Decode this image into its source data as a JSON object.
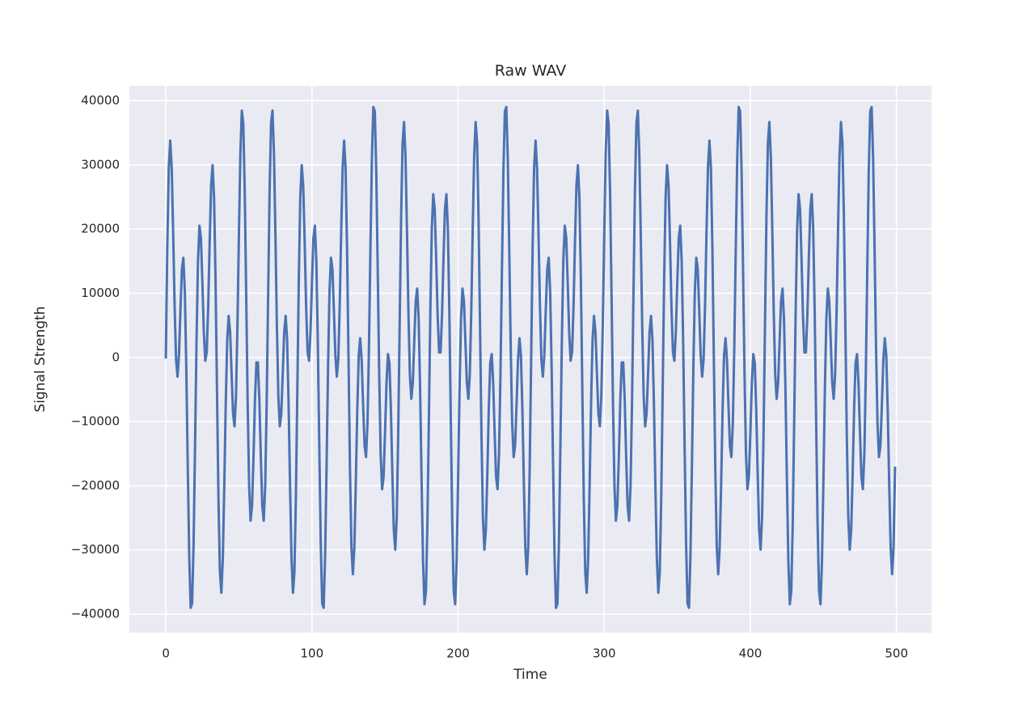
{
  "chart_data": {
    "type": "line",
    "title": "Raw WAV",
    "x_label": "Time",
    "y_label": "Signal Strength",
    "color": "#4c72b0",
    "grid": true,
    "xlim": [
      -24.95,
      523.95
    ],
    "xticks": [
      0,
      100,
      200,
      300,
      400,
      500
    ],
    "ylim": [
      -42893,
      42328
    ],
    "yticks": [
      {
        "value": -40000,
        "label": "−40000"
      },
      {
        "value": -30000,
        "label": "−30000"
      },
      {
        "value": -20000,
        "label": "−20000"
      },
      {
        "value": -10000,
        "label": "−10000"
      },
      0,
      10000,
      20000,
      30000,
      40000
    ],
    "x": [
      0,
      1,
      2,
      3,
      4,
      5,
      6,
      7,
      8,
      9,
      10,
      11,
      12,
      13,
      14,
      15,
      16,
      17,
      18,
      19,
      20,
      21,
      22,
      23,
      24,
      25,
      26,
      27,
      28,
      29,
      30,
      31,
      32,
      33,
      34,
      35,
      36,
      37,
      38,
      39,
      40,
      41,
      42,
      43,
      44,
      45,
      46,
      47,
      48,
      49,
      50,
      51,
      52,
      53,
      54,
      55,
      56,
      57,
      58,
      59,
      60,
      61,
      62,
      63,
      64,
      65,
      66,
      67,
      68,
      69,
      70,
      71,
      72,
      73,
      74,
      75,
      76,
      77,
      78,
      79,
      80,
      81,
      82,
      83,
      84,
      85,
      86,
      87,
      88,
      89,
      90,
      91,
      92,
      93,
      94,
      95,
      96,
      97,
      98,
      99,
      100,
      101,
      102,
      103,
      104,
      105,
      106,
      107,
      108,
      109,
      110,
      111,
      112,
      113,
      114,
      115,
      116,
      117,
      118,
      119,
      120,
      121,
      122,
      123,
      124,
      125,
      126,
      127,
      128,
      129,
      130,
      131,
      132,
      133,
      134,
      135,
      136,
      137,
      138,
      139,
      140,
      141,
      142,
      143,
      144,
      145,
      146,
      147,
      148,
      149,
      150,
      151,
      152,
      153,
      154,
      155,
      156,
      157,
      158,
      159,
      160,
      161,
      162,
      163,
      164,
      165,
      166,
      167,
      168,
      169,
      170,
      171,
      172,
      173,
      174,
      175,
      176,
      177,
      178,
      179,
      180,
      181,
      182,
      183,
      184,
      185,
      186,
      187,
      188,
      189,
      190,
      191,
      192,
      193,
      194,
      195,
      196,
      197,
      198,
      199,
      200,
      201,
      202,
      203,
      204,
      205,
      206,
      207,
      208,
      209,
      210,
      211,
      212,
      213,
      214,
      215,
      216,
      217,
      218,
      219,
      220,
      221,
      222,
      223,
      224,
      225,
      226,
      227,
      228,
      229,
      230,
      231,
      232,
      233,
      234,
      235,
      236,
      237,
      238,
      239,
      240,
      241,
      242,
      243,
      244,
      245,
      246,
      247,
      248,
      249,
      250,
      251,
      252,
      253,
      254,
      255,
      256,
      257,
      258,
      259,
      260,
      261,
      262,
      263,
      264,
      265,
      266,
      267,
      268,
      269,
      270,
      271,
      272,
      273,
      274,
      275,
      276,
      277,
      278,
      279,
      280,
      281,
      282,
      283,
      284,
      285,
      286,
      287,
      288,
      289,
      290,
      291,
      292,
      293,
      294,
      295,
      296,
      297,
      298,
      299,
      300,
      301,
      302,
      303,
      304,
      305,
      306,
      307,
      308,
      309,
      310,
      311,
      312,
      313,
      314,
      315,
      316,
      317,
      318,
      319,
      320,
      321,
      322,
      323,
      324,
      325,
      326,
      327,
      328,
      329,
      330,
      331,
      332,
      333,
      334,
      335,
      336,
      337,
      338,
      339,
      340,
      341,
      342,
      343,
      344,
      345,
      346,
      347,
      348,
      349,
      350,
      351,
      352,
      353,
      354,
      355,
      356,
      357,
      358,
      359,
      360,
      361,
      362,
      363,
      364,
      365,
      366,
      367,
      368,
      369,
      370,
      371,
      372,
      373,
      374,
      375,
      376,
      377,
      378,
      379,
      380,
      381,
      382,
      383,
      384,
      385,
      386,
      387,
      388,
      389,
      390,
      391,
      392,
      393,
      394,
      395,
      396,
      397,
      398,
      399,
      400,
      401,
      402,
      403,
      404,
      405,
      406,
      407,
      408,
      409,
      410,
      411,
      412,
      413,
      414,
      415,
      416,
      417,
      418,
      419,
      420,
      421,
      422,
      423,
      424,
      425,
      426,
      427,
      428,
      429,
      430,
      431,
      432,
      433,
      434,
      435,
      436,
      437,
      438,
      439,
      440,
      441,
      442,
      443,
      444,
      445,
      446,
      447,
      448,
      449,
      450,
      451,
      452,
      453,
      454,
      455,
      456,
      457,
      458,
      459,
      460,
      461,
      462,
      463,
      464,
      465,
      466,
      467,
      468,
      469,
      470,
      471,
      472,
      473,
      474,
      475,
      476,
      477,
      478,
      479,
      480,
      481,
      482,
      483,
      484,
      485,
      486,
      487,
      488,
      489,
      490,
      491,
      492,
      493,
      494,
      495,
      496,
      497,
      498,
      499
    ],
    "values": [
      0,
      17214,
      29525,
      33769,
      29634,
      19646,
      8167,
      -335,
      -2991,
      402,
      7362,
      13763,
      15521,
      10278,
      -1564,
      -16886,
      -30926,
      -39019,
      -38329,
      -28907,
      -13691,
      2565,
      15027,
      20528,
      18649,
      11756,
      3970,
      -519,
      851,
      7978,
      18097,
      26842,
      29950,
      24962,
      12259,
      -4974,
      -21829,
      -33427,
      -36667,
      -31302,
      -19961,
      -7103,
      2694,
      6465,
      3929,
      -2507,
      -8751,
      -10733,
      -6079,
      4856,
      19021,
      31742,
      38454,
      36425,
      25810,
      9636,
      -7270,
      -20026,
      -25440,
      -23101,
      -15410,
      -6548,
      -788,
      -788,
      -6548,
      -15410,
      -23101,
      -25440,
      -20026,
      -7270,
      9636,
      25810,
      36425,
      38454,
      31742,
      19021,
      4856,
      -6079,
      -10733,
      -8751,
      -2507,
      3929,
      6465,
      2694,
      -7103,
      -19961,
      -31302,
      -36667,
      -33427,
      -21829,
      -4974,
      12259,
      24962,
      29950,
      26842,
      18097,
      7978,
      851,
      -519,
      3970,
      11756,
      18649,
      20528,
      15027,
      2565,
      -13691,
      -28907,
      -38329,
      -39019,
      -30926,
      -16886,
      -1564,
      10278,
      15521,
      13763,
      7362,
      402,
      -2991,
      -335,
      8167,
      19646,
      29634,
      33769,
      29525,
      17214,
      0,
      -17214,
      -29525,
      -33769,
      -29634,
      -19646,
      -8167,
      335,
      2991,
      -402,
      -7362,
      -13763,
      -15521,
      -10278,
      1564,
      16886,
      30926,
      39019,
      38329,
      28907,
      13691,
      -2565,
      -15027,
      -20528,
      -18649,
      -11756,
      -3970,
      519,
      -851,
      -7978,
      -18097,
      -26842,
      -29950,
      -24962,
      -12259,
      4974,
      21829,
      33427,
      36667,
      31302,
      19961,
      7103,
      -2694,
      -6465,
      -3929,
      2507,
      8751,
      10733,
      6079,
      -4856,
      -19021,
      -31742,
      -38454,
      -36425,
      -25810,
      -9636,
      7270,
      20026,
      25440,
      23101,
      15410,
      6548,
      788,
      788,
      6548,
      15410,
      23101,
      25440,
      20026,
      7270,
      -9636,
      -25810,
      -36425,
      -38454,
      -31742,
      -19021,
      -4856,
      6079,
      10733,
      8751,
      2507,
      -3929,
      -6465,
      -2694,
      7103,
      19961,
      31302,
      36667,
      33427,
      21829,
      4974,
      -12259,
      -24962,
      -29950,
      -26842,
      -18097,
      -7978,
      -851,
      519,
      -3970,
      -11756,
      -18649,
      -20528,
      -15027,
      -2565,
      13691,
      28907,
      38329,
      39019,
      30926,
      16886,
      1564,
      -10278,
      -15521,
      -13763,
      -7362,
      -402,
      2991,
      335,
      -8167,
      -19646,
      -29634,
      -33769,
      -29525,
      -17214,
      0,
      17214,
      29525,
      33769,
      29634,
      19646,
      8167,
      -335,
      -2991,
      402,
      7362,
      13763,
      15521,
      10278,
      -1564,
      -16886,
      -30926,
      -39019,
      -38329,
      -28907,
      -13691,
      2565,
      15027,
      20528,
      18649,
      11756,
      3970,
      -519,
      851,
      7978,
      18097,
      26842,
      29950,
      24962,
      12259,
      -4974,
      -21829,
      -33427,
      -36667,
      -31302,
      -19961,
      -7103,
      2694,
      6465,
      3929,
      -2507,
      -8751,
      -10733,
      -6079,
      4856,
      19021,
      31742,
      38454,
      36425,
      25810,
      9636,
      -7270,
      -20026,
      -25440,
      -23101,
      -15410,
      -6548,
      -788,
      -788,
      -6548,
      -15410,
      -23101,
      -25440,
      -20026,
      -7270,
      9636,
      25810,
      36425,
      38454,
      31742,
      19021,
      4856,
      -6079,
      -10733,
      -8751,
      -2507,
      3929,
      6465,
      2694,
      -7103,
      -19961,
      -31302,
      -36667,
      -33427,
      -21829,
      -4974,
      12259,
      24962,
      29950,
      26842,
      18097,
      7978,
      851,
      -519,
      3970,
      11756,
      18649,
      20528,
      15027,
      2565,
      -13691,
      -28907,
      -38329,
      -39019,
      -30926,
      -16886,
      -1564,
      10278,
      15521,
      13763,
      7362,
      402,
      -2991,
      -335,
      8167,
      19646,
      29634,
      33769,
      29525,
      17214,
      0,
      -17214,
      -29525,
      -33769,
      -29634,
      -19646,
      -8167,
      335,
      2991,
      -402,
      -7362,
      -13763,
      -15521,
      -10278,
      1564,
      16886,
      30926,
      39019,
      38329,
      28907,
      13691,
      -2565,
      -15027,
      -20528,
      -18649,
      -11756,
      -3970,
      519,
      -851,
      -7978,
      -18097,
      -26842,
      -29950,
      -24962,
      -12259,
      4974,
      21829,
      33427,
      36667,
      31302,
      19961,
      7103,
      -2694,
      -6465,
      -3929,
      2507,
      8751,
      10733,
      6079,
      -4856,
      -19021,
      -31742,
      -38454,
      -36425,
      -25810,
      -9636,
      7270,
      20026,
      25440,
      23101,
      15410,
      6548,
      788,
      788,
      6548,
      15410,
      23101,
      25440,
      20026,
      7270,
      -9636,
      -25810,
      -36425,
      -38454,
      -31742,
      -19021,
      -4856,
      6079,
      10733,
      8751,
      2507,
      -3929,
      -6465,
      -2694,
      7103,
      19961,
      31302,
      36667,
      33427,
      21829,
      4974,
      -12259,
      -24962,
      -29950,
      -26842,
      -18097,
      -7978,
      -851,
      519,
      -3970,
      -11756,
      -18649,
      -20528,
      -15027,
      -2565,
      13691,
      28907,
      38329,
      39019,
      30926,
      16886,
      1564,
      -10278,
      -15521,
      -13763,
      -7362,
      -402,
      2991,
      335,
      -8167,
      -19646,
      -29634,
      -33769,
      -29525,
      -17214
    ]
  }
}
